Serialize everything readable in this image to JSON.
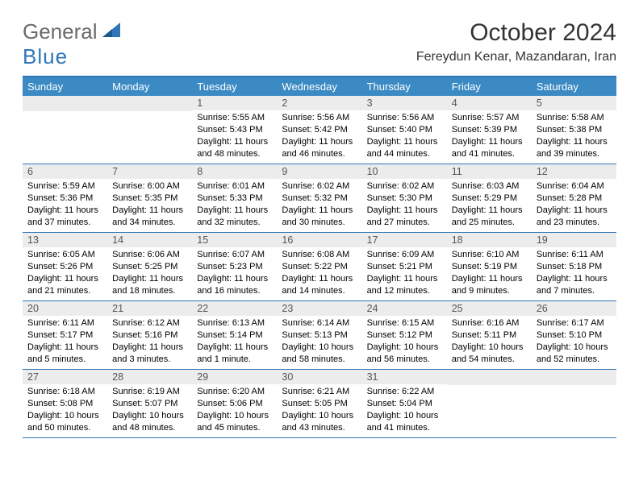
{
  "logo": {
    "general": "General",
    "blue": "Blue",
    "accent_color": "#2f77b9",
    "text_color": "#6a6a6a"
  },
  "title": "October 2024",
  "location": "Fereydun Kenar, Mazandaran, Iran",
  "colors": {
    "header_bg": "#3b8ac4",
    "border": "#2f77b9",
    "daynum_bg": "#ececec"
  },
  "weekdays": [
    "Sunday",
    "Monday",
    "Tuesday",
    "Wednesday",
    "Thursday",
    "Friday",
    "Saturday"
  ],
  "weeks": [
    [
      null,
      null,
      {
        "n": "1",
        "sr": "5:55 AM",
        "ss": "5:43 PM",
        "dl": "11 hours and 48 minutes."
      },
      {
        "n": "2",
        "sr": "5:56 AM",
        "ss": "5:42 PM",
        "dl": "11 hours and 46 minutes."
      },
      {
        "n": "3",
        "sr": "5:56 AM",
        "ss": "5:40 PM",
        "dl": "11 hours and 44 minutes."
      },
      {
        "n": "4",
        "sr": "5:57 AM",
        "ss": "5:39 PM",
        "dl": "11 hours and 41 minutes."
      },
      {
        "n": "5",
        "sr": "5:58 AM",
        "ss": "5:38 PM",
        "dl": "11 hours and 39 minutes."
      }
    ],
    [
      {
        "n": "6",
        "sr": "5:59 AM",
        "ss": "5:36 PM",
        "dl": "11 hours and 37 minutes."
      },
      {
        "n": "7",
        "sr": "6:00 AM",
        "ss": "5:35 PM",
        "dl": "11 hours and 34 minutes."
      },
      {
        "n": "8",
        "sr": "6:01 AM",
        "ss": "5:33 PM",
        "dl": "11 hours and 32 minutes."
      },
      {
        "n": "9",
        "sr": "6:02 AM",
        "ss": "5:32 PM",
        "dl": "11 hours and 30 minutes."
      },
      {
        "n": "10",
        "sr": "6:02 AM",
        "ss": "5:30 PM",
        "dl": "11 hours and 27 minutes."
      },
      {
        "n": "11",
        "sr": "6:03 AM",
        "ss": "5:29 PM",
        "dl": "11 hours and 25 minutes."
      },
      {
        "n": "12",
        "sr": "6:04 AM",
        "ss": "5:28 PM",
        "dl": "11 hours and 23 minutes."
      }
    ],
    [
      {
        "n": "13",
        "sr": "6:05 AM",
        "ss": "5:26 PM",
        "dl": "11 hours and 21 minutes."
      },
      {
        "n": "14",
        "sr": "6:06 AM",
        "ss": "5:25 PM",
        "dl": "11 hours and 18 minutes."
      },
      {
        "n": "15",
        "sr": "6:07 AM",
        "ss": "5:23 PM",
        "dl": "11 hours and 16 minutes."
      },
      {
        "n": "16",
        "sr": "6:08 AM",
        "ss": "5:22 PM",
        "dl": "11 hours and 14 minutes."
      },
      {
        "n": "17",
        "sr": "6:09 AM",
        "ss": "5:21 PM",
        "dl": "11 hours and 12 minutes."
      },
      {
        "n": "18",
        "sr": "6:10 AM",
        "ss": "5:19 PM",
        "dl": "11 hours and 9 minutes."
      },
      {
        "n": "19",
        "sr": "6:11 AM",
        "ss": "5:18 PM",
        "dl": "11 hours and 7 minutes."
      }
    ],
    [
      {
        "n": "20",
        "sr": "6:11 AM",
        "ss": "5:17 PM",
        "dl": "11 hours and 5 minutes."
      },
      {
        "n": "21",
        "sr": "6:12 AM",
        "ss": "5:16 PM",
        "dl": "11 hours and 3 minutes."
      },
      {
        "n": "22",
        "sr": "6:13 AM",
        "ss": "5:14 PM",
        "dl": "11 hours and 1 minute."
      },
      {
        "n": "23",
        "sr": "6:14 AM",
        "ss": "5:13 PM",
        "dl": "10 hours and 58 minutes."
      },
      {
        "n": "24",
        "sr": "6:15 AM",
        "ss": "5:12 PM",
        "dl": "10 hours and 56 minutes."
      },
      {
        "n": "25",
        "sr": "6:16 AM",
        "ss": "5:11 PM",
        "dl": "10 hours and 54 minutes."
      },
      {
        "n": "26",
        "sr": "6:17 AM",
        "ss": "5:10 PM",
        "dl": "10 hours and 52 minutes."
      }
    ],
    [
      {
        "n": "27",
        "sr": "6:18 AM",
        "ss": "5:08 PM",
        "dl": "10 hours and 50 minutes."
      },
      {
        "n": "28",
        "sr": "6:19 AM",
        "ss": "5:07 PM",
        "dl": "10 hours and 48 minutes."
      },
      {
        "n": "29",
        "sr": "6:20 AM",
        "ss": "5:06 PM",
        "dl": "10 hours and 45 minutes."
      },
      {
        "n": "30",
        "sr": "6:21 AM",
        "ss": "5:05 PM",
        "dl": "10 hours and 43 minutes."
      },
      {
        "n": "31",
        "sr": "6:22 AM",
        "ss": "5:04 PM",
        "dl": "10 hours and 41 minutes."
      },
      null,
      null
    ]
  ],
  "labels": {
    "sunrise": "Sunrise: ",
    "sunset": "Sunset: ",
    "daylight": "Daylight: "
  }
}
